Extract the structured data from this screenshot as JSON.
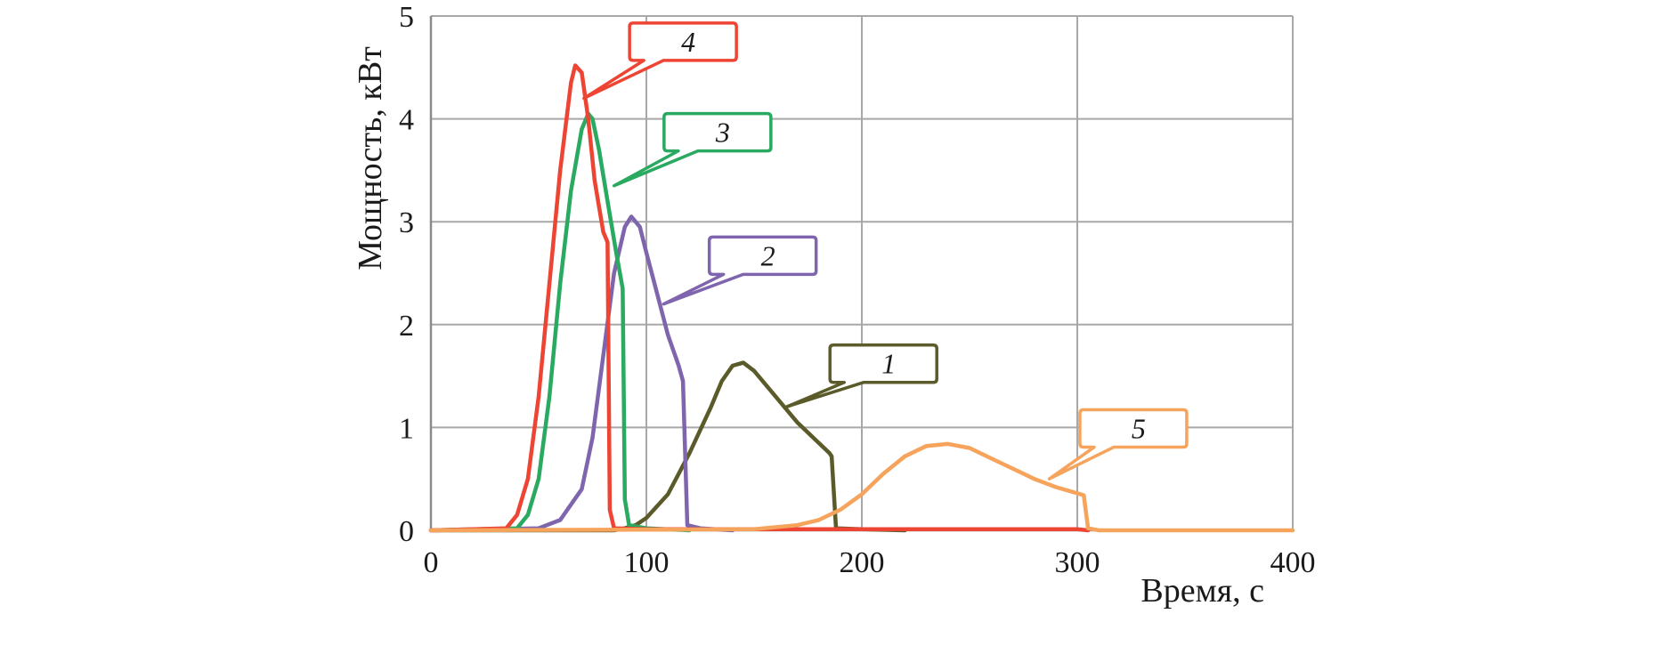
{
  "chart_data": {
    "type": "line",
    "title": "",
    "xlabel": "Время, с",
    "ylabel": "Мощность, кВт",
    "xlim": [
      0,
      400
    ],
    "ylim": [
      0,
      5
    ],
    "x_ticks": [
      "0",
      "100",
      "200",
      "300",
      "400"
    ],
    "y_ticks": [
      "0",
      "1",
      "2",
      "3",
      "4",
      "5"
    ],
    "grid": true,
    "legend": "callouts",
    "series": [
      {
        "name": "1",
        "color": "#5b5a2a",
        "x": [
          0,
          85,
          90,
          95,
          100,
          110,
          120,
          130,
          135,
          140,
          145,
          150,
          160,
          170,
          180,
          185,
          186,
          188,
          200,
          220
        ],
        "y": [
          0,
          0,
          0.02,
          0.05,
          0.12,
          0.35,
          0.75,
          1.2,
          1.45,
          1.6,
          1.63,
          1.55,
          1.3,
          1.05,
          0.85,
          0.75,
          0.72,
          0.02,
          0.01,
          0
        ]
      },
      {
        "name": "2",
        "color": "#7e65ad",
        "x": [
          0,
          50,
          60,
          70,
          75,
          80,
          85,
          90,
          93,
          97,
          100,
          105,
          110,
          115,
          117,
          119,
          125,
          140
        ],
        "y": [
          0,
          0.02,
          0.1,
          0.4,
          0.9,
          1.7,
          2.5,
          2.95,
          3.05,
          2.95,
          2.7,
          2.3,
          1.9,
          1.6,
          1.45,
          0.05,
          0.02,
          0
        ]
      },
      {
        "name": "3",
        "color": "#2aa960",
        "x": [
          0,
          40,
          45,
          50,
          55,
          60,
          65,
          70,
          73,
          75,
          78,
          82,
          86,
          89,
          90,
          92,
          100,
          120
        ],
        "y": [
          0,
          0.02,
          0.15,
          0.5,
          1.3,
          2.4,
          3.3,
          3.9,
          4.05,
          4.0,
          3.7,
          3.2,
          2.7,
          2.35,
          0.3,
          0.05,
          0.02,
          0
        ]
      },
      {
        "name": "4",
        "color": "#ee4433",
        "x": [
          0,
          35,
          40,
          45,
          50,
          55,
          60,
          65,
          67,
          70,
          73,
          76,
          80,
          82,
          83,
          85,
          100,
          200,
          300,
          305
        ],
        "y": [
          0,
          0.02,
          0.15,
          0.5,
          1.3,
          2.4,
          3.5,
          4.35,
          4.52,
          4.45,
          4.0,
          3.4,
          2.9,
          2.8,
          0.2,
          0.02,
          0.01,
          0.01,
          0.01,
          0
        ]
      },
      {
        "name": "5",
        "color": "#f6a45c",
        "x": [
          0,
          150,
          170,
          180,
          190,
          200,
          210,
          220,
          230,
          240,
          250,
          260,
          270,
          280,
          290,
          300,
          303,
          305,
          310,
          400
        ],
        "y": [
          0,
          0.01,
          0.05,
          0.1,
          0.2,
          0.35,
          0.55,
          0.72,
          0.82,
          0.84,
          0.8,
          0.7,
          0.6,
          0.5,
          0.42,
          0.36,
          0.34,
          0.02,
          0,
          0
        ]
      }
    ],
    "annotations": [
      {
        "label": "1",
        "series": "1",
        "anchor": [
          165,
          1.2
        ],
        "box_center": [
          210,
          1.62
        ]
      },
      {
        "label": "2",
        "series": "2",
        "anchor": [
          108,
          2.2
        ],
        "box_center": [
          154,
          2.67
        ]
      },
      {
        "label": "3",
        "series": "3",
        "anchor": [
          85,
          3.35
        ],
        "box_center": [
          133,
          3.87
        ]
      },
      {
        "label": "4",
        "series": "4",
        "anchor": [
          71,
          4.2
        ],
        "box_center": [
          117,
          4.75
        ]
      },
      {
        "label": "5",
        "series": "5",
        "anchor": [
          287,
          0.5
        ],
        "box_center": [
          326,
          0.99
        ]
      }
    ]
  }
}
